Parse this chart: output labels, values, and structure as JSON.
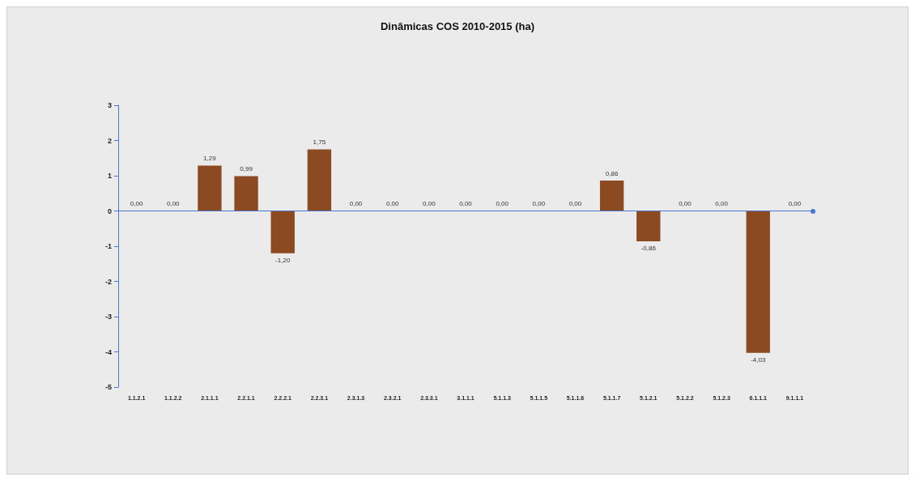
{
  "chart_data": {
    "type": "bar",
    "title": "Dinâmicas COS 2010-2015 (ha)",
    "categories": [
      "1.1.2.1",
      "1.1.2.2",
      "2.1.1.1",
      "2.2.1.1",
      "2.2.2.1",
      "2.2.3.1",
      "2.3.1.3",
      "2.3.2.1",
      "2.3.3.1",
      "3.1.1.1",
      "5.1.1.3",
      "5.1.1.5",
      "5.1.1.6",
      "5.1.1.7",
      "5.1.2.1",
      "5.1.2.2",
      "5.1.2.3",
      "6.1.1.1",
      "9.1.1.1"
    ],
    "values": [
      0,
      0,
      1.29,
      0.99,
      -1.2,
      1.75,
      0,
      0,
      0,
      0,
      0,
      0,
      0,
      0.86,
      -0.86,
      0,
      0,
      -4.03,
      0
    ],
    "value_labels": [
      "0,00",
      "0,00",
      "1,29",
      "0,99",
      "-1,20",
      "1,75",
      "0,00",
      "0,00",
      "0,00",
      "0,00",
      "0,00",
      "0,00",
      "0,00",
      "0,86",
      "-0,86",
      "0,00",
      "0,00",
      "-4,03",
      "0,00"
    ],
    "color": "#8b4a22",
    "ylim": [
      -5,
      3
    ],
    "yticks": [
      -5,
      -4,
      -3,
      -2,
      -1,
      0,
      1,
      2,
      3
    ],
    "grid": false,
    "ref_lines": [
      {
        "axis": "y",
        "value": 0,
        "color": "#4a78d0"
      }
    ]
  }
}
